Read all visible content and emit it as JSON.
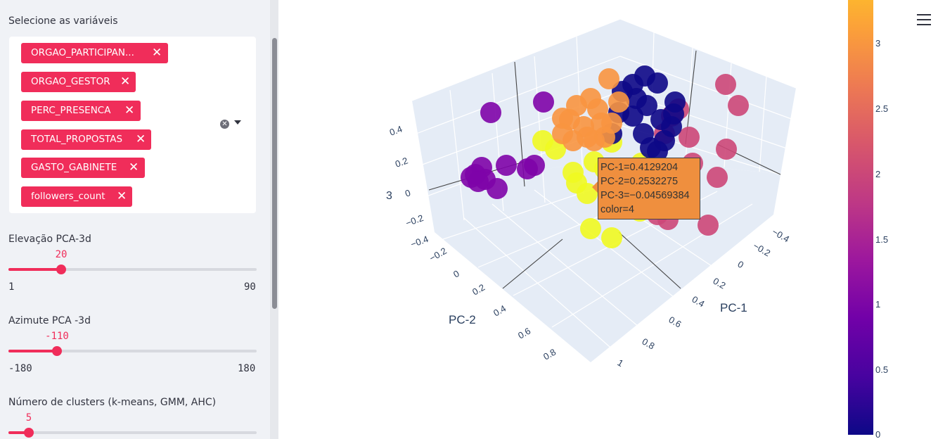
{
  "sidebar": {
    "variables_label": "Selecione as variáveis",
    "selected_variables": [
      "ORGAO_PARTICIPAN...",
      "ORGAO_GESTOR",
      "PERC_PRESENCA",
      "TOTAL_PROPOSTAS",
      "GASTO_GABINETE",
      "followers_count"
    ],
    "remove_glyph": "✕",
    "clear_glyph": "✕",
    "sliders": [
      {
        "label": "Elevação PCA-3d",
        "value": "20",
        "min": "1",
        "max": "90",
        "fraction": 0.2135
      },
      {
        "label": "Azimute PCA -3d",
        "value": "-110",
        "min": "-180",
        "max": "180",
        "fraction": 0.1944
      },
      {
        "label": "Número de clusters (k-means, GMM, AHC)",
        "value": "5",
        "min": "",
        "max": "",
        "fraction": 0.08
      }
    ]
  },
  "plot": {
    "axis_titles": {
      "x": "PC-1",
      "y": "PC-2",
      "z": "3"
    },
    "x_ticks": [
      "−0.4",
      "−0.2",
      "0",
      "0.2",
      "0.4",
      "0.6",
      "0.8",
      "1"
    ],
    "y_ticks": [
      "−0.2",
      "0",
      "0.2",
      "0.4",
      "0.6",
      "0.8"
    ],
    "z_ticks": [
      "0.4",
      "0.2",
      "0",
      "−0.2",
      "−0.4"
    ],
    "colorbar_ticks": [
      "3",
      "2.5",
      "2",
      "1.5",
      "1",
      "0.5",
      "0"
    ],
    "tooltip": [
      "PC-1=0.4129204",
      "PC-2=0.2532275",
      "PC-3=−0.04569384",
      "color=4"
    ],
    "colors": {
      "cluster_0": "#0d0887",
      "cluster_1": "#7e03a8",
      "cluster_2": "#cc4778",
      "cluster_3": "#f89540",
      "cluster_4": "#f0f921",
      "accent": "#f02d5a"
    }
  },
  "menu_icon": "hamburger-menu-icon"
}
